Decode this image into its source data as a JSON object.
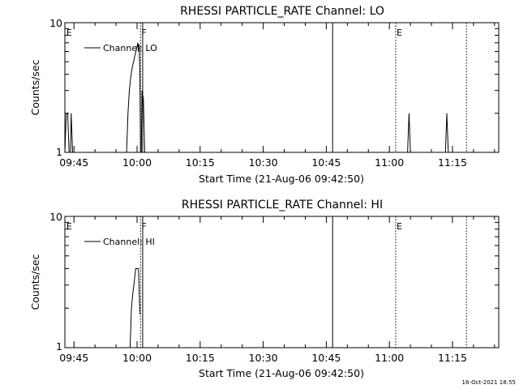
{
  "chart_data": [
    {
      "type": "line",
      "title": "RHESSI PARTICLE_RATE Channel: LO",
      "xlabel": "Start Time (21-Aug-06 09:42:50)",
      "ylabel": "Counts/sec",
      "xlim": [
        "09:42:50",
        "11:26:00"
      ],
      "ylim": [
        1,
        10
      ],
      "y_scale": "log",
      "x_ticks": [
        "09:45",
        "10:00",
        "10:15",
        "10:30",
        "10:45",
        "11:00",
        "11:15"
      ],
      "y_ticks": [
        "1",
        "10"
      ],
      "legend": {
        "label": "Channel: LO",
        "placement": "top-left"
      },
      "markers": [
        {
          "label": "E",
          "time": "09:43:00",
          "style": "none"
        },
        {
          "label": "F",
          "time": "10:00:50",
          "style": "dotted"
        },
        {
          "label": "",
          "time": "10:01:20",
          "style": "solid"
        },
        {
          "label": "",
          "time": "10:46:30",
          "style": "solid"
        },
        {
          "label": "E",
          "time": "11:01:30",
          "style": "dotted"
        },
        {
          "label": "",
          "time": "11:18:20",
          "style": "dotted"
        }
      ],
      "series": [
        {
          "segments": [
            [
              [
                "09:42:50",
                1
              ],
              [
                "09:43:10",
                2
              ],
              [
                "09:43:30",
                2
              ],
              [
                "09:43:50",
                1
              ]
            ],
            [
              [
                "09:44:10",
                1
              ],
              [
                "09:44:20",
                2
              ],
              [
                "09:44:40",
                1
              ]
            ],
            [
              [
                "09:57:30",
                1
              ],
              [
                "09:57:50",
                2
              ],
              [
                "09:58:10",
                3
              ],
              [
                "09:58:30",
                3.8
              ],
              [
                "09:58:50",
                4.5
              ],
              [
                "09:59:10",
                5
              ],
              [
                "09:59:30",
                5.6
              ],
              [
                "09:59:50",
                6.2
              ],
              [
                "10:00:10",
                7
              ],
              [
                "10:00:20",
                6
              ],
              [
                "10:00:30",
                6.8
              ],
              [
                "10:00:40",
                4
              ],
              [
                "10:00:50",
                1
              ]
            ],
            [
              [
                "10:01:00",
                1
              ],
              [
                "10:01:10",
                3
              ],
              [
                "10:01:30",
                2.6
              ],
              [
                "10:01:50",
                1
              ]
            ],
            [
              [
                "11:04:20",
                1
              ],
              [
                "11:04:40",
                2
              ],
              [
                "11:05:00",
                1
              ]
            ],
            [
              [
                "11:13:20",
                1
              ],
              [
                "11:13:40",
                2
              ],
              [
                "11:14:00",
                1
              ]
            ]
          ]
        }
      ]
    },
    {
      "type": "line",
      "title": "RHESSI PARTICLE_RATE Channel: HI",
      "xlabel": "Start Time (21-Aug-06 09:42:50)",
      "ylabel": "Counts/sec",
      "xlim": [
        "09:42:50",
        "11:26:00"
      ],
      "ylim": [
        1,
        10
      ],
      "y_scale": "log",
      "x_ticks": [
        "09:45",
        "10:00",
        "10:15",
        "10:30",
        "10:45",
        "11:00",
        "11:15"
      ],
      "y_ticks": [
        "1",
        "10"
      ],
      "legend": {
        "label": "Channel: HI",
        "placement": "top-left"
      },
      "markers": [
        {
          "label": "E",
          "time": "09:43:00",
          "style": "none"
        },
        {
          "label": "F",
          "time": "10:00:50",
          "style": "dotted"
        },
        {
          "label": "",
          "time": "10:01:20",
          "style": "solid"
        },
        {
          "label": "",
          "time": "10:46:30",
          "style": "solid"
        },
        {
          "label": "E",
          "time": "11:01:30",
          "style": "dotted"
        },
        {
          "label": "",
          "time": "11:18:20",
          "style": "dotted"
        }
      ],
      "series": [
        {
          "segments": [
            [
              [
                "09:58:20",
                1
              ],
              [
                "09:58:40",
                2
              ],
              [
                "09:59:00",
                2.6
              ],
              [
                "09:59:20",
                3.2
              ],
              [
                "09:59:40",
                4
              ],
              [
                "10:00:00",
                4
              ],
              [
                "10:00:20",
                4
              ],
              [
                "10:00:40",
                1.8
              ]
            ]
          ]
        }
      ]
    }
  ],
  "footer": {
    "timestamp": "16-Oct-2021 18:55"
  }
}
